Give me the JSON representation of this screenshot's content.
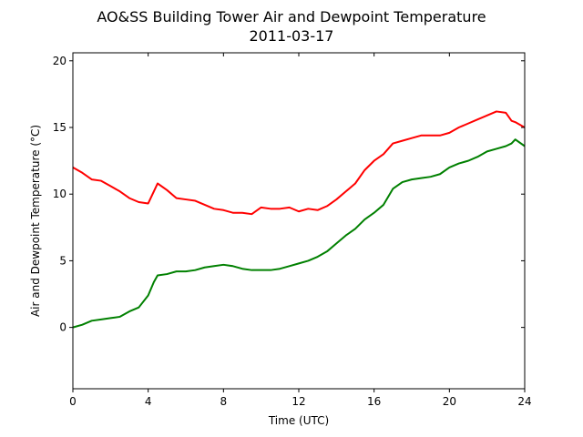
{
  "chart_data": {
    "type": "line",
    "title": "AO&SS Building Tower Air and Dewpoint Temperature",
    "subtitle": "2011-03-17",
    "xlabel": "Time (UTC)",
    "ylabel": "Air and Dewpoint Temperature (°C)",
    "xlim": [
      0,
      24
    ],
    "ylim": [
      -4.6,
      20.6
    ],
    "xticks": [
      0,
      4,
      8,
      12,
      16,
      20,
      24
    ],
    "yticks": [
      0,
      5,
      10,
      15,
      20
    ],
    "grid": false,
    "series": [
      {
        "color": "#ff0000",
        "x": [
          0,
          0.5,
          1,
          1.5,
          2,
          2.5,
          3,
          3.5,
          4,
          4.3,
          4.5,
          5,
          5.5,
          6,
          6.5,
          7,
          7.5,
          8,
          8.5,
          9,
          9.5,
          10,
          10.5,
          11,
          11.5,
          12,
          12.5,
          13,
          13.5,
          14,
          14.5,
          15,
          15.5,
          16,
          16.5,
          17,
          17.5,
          18,
          18.5,
          19,
          19.5,
          20,
          20.5,
          21,
          21.5,
          22,
          22.5,
          23,
          23.3,
          23.5,
          24
        ],
        "y": [
          12.0,
          11.6,
          11.1,
          11.0,
          10.6,
          10.2,
          9.7,
          9.4,
          9.3,
          10.2,
          10.8,
          10.3,
          9.7,
          9.6,
          9.5,
          9.2,
          8.9,
          8.8,
          8.6,
          8.6,
          8.5,
          9.0,
          8.9,
          8.9,
          9.0,
          8.7,
          8.9,
          8.8,
          9.1,
          9.6,
          10.2,
          10.8,
          11.8,
          12.5,
          13.0,
          13.8,
          14.0,
          14.2,
          14.4,
          14.4,
          14.4,
          14.6,
          15.0,
          15.3,
          15.6,
          15.9,
          16.2,
          16.1,
          15.5,
          15.4,
          15.0
        ]
      },
      {
        "color": "#008000",
        "x": [
          0,
          0.5,
          1,
          1.5,
          2,
          2.5,
          3,
          3.5,
          4,
          4.3,
          4.5,
          5,
          5.5,
          6,
          6.5,
          7,
          7.5,
          8,
          8.5,
          9,
          9.5,
          10,
          10.5,
          11,
          11.5,
          12,
          12.5,
          13,
          13.5,
          14,
          14.5,
          15,
          15.5,
          16,
          16.5,
          17,
          17.5,
          18,
          18.5,
          19,
          19.5,
          20,
          20.5,
          21,
          21.5,
          22,
          22.5,
          23,
          23.3,
          23.5,
          24
        ],
        "y": [
          0.0,
          0.2,
          0.5,
          0.6,
          0.7,
          0.8,
          1.2,
          1.5,
          2.4,
          3.4,
          3.9,
          4.0,
          4.2,
          4.2,
          4.3,
          4.5,
          4.6,
          4.7,
          4.6,
          4.4,
          4.3,
          4.3,
          4.3,
          4.4,
          4.6,
          4.8,
          5.0,
          5.3,
          5.7,
          6.3,
          6.9,
          7.4,
          8.1,
          8.6,
          9.2,
          10.4,
          10.9,
          11.1,
          11.2,
          11.3,
          11.5,
          12.0,
          12.3,
          12.5,
          12.8,
          13.2,
          13.4,
          13.6,
          13.8,
          14.1,
          13.6
        ]
      }
    ]
  }
}
